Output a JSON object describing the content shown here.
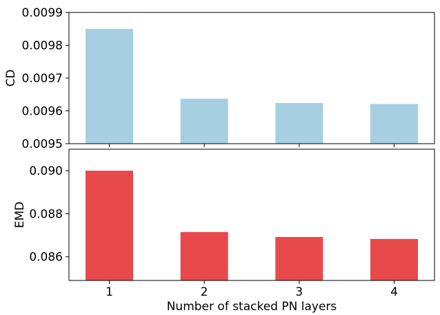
{
  "chart_data": [
    {
      "type": "bar",
      "categories": [
        "1",
        "2",
        "3",
        "4"
      ],
      "values": [
        0.00985,
        0.009637,
        0.009624,
        0.009621
      ],
      "ylabel": "CD",
      "ylim": [
        0.0095,
        0.0099
      ],
      "yticks": [
        "0.0095",
        "0.0096",
        "0.0097",
        "0.0098",
        "0.0099"
      ],
      "ytick_values": [
        0.0095,
        0.0096,
        0.0097,
        0.0098,
        0.0099
      ],
      "bar_color": "#a6cfe2",
      "xlabel": ""
    },
    {
      "type": "bar",
      "categories": [
        "1",
        "2",
        "3",
        "4"
      ],
      "values": [
        0.09,
        0.08715,
        0.08692,
        0.08683
      ],
      "ylabel": "EMD",
      "ylim": [
        0.0849,
        0.091
      ],
      "yticks": [
        "0.086",
        "0.088",
        "0.090"
      ],
      "ytick_values": [
        0.086,
        0.088,
        0.09
      ],
      "bar_color": "#e8494b",
      "xlabel": "Number of stacked PN layers"
    }
  ]
}
